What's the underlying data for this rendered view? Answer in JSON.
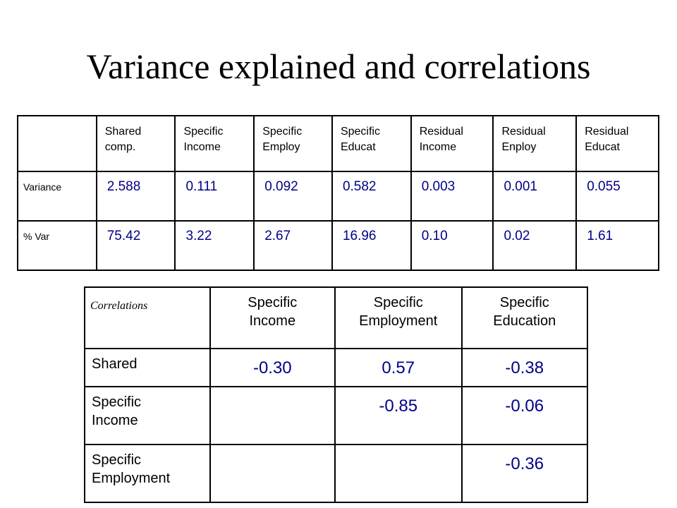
{
  "title": "Variance explained and correlations",
  "variance_table": {
    "headers": [
      [
        "Shared",
        "comp."
      ],
      [
        "Specific",
        "Income"
      ],
      [
        "Specific",
        "Employ"
      ],
      [
        "Specific",
        "Educat"
      ],
      [
        "Residual",
        "Income"
      ],
      [
        "Residual",
        "Enploy"
      ],
      [
        "Residual",
        "Educat"
      ]
    ],
    "rows": [
      {
        "label": "Variance",
        "values": [
          "2.588",
          "0.111",
          "0.092",
          "0.582",
          "0.003",
          "0.001",
          "0.055"
        ]
      },
      {
        "label": "% Var",
        "values": [
          "75.42",
          "3.22",
          "2.67",
          "16.96",
          "0.10",
          "0.02",
          "1.61"
        ]
      }
    ]
  },
  "correlation_table": {
    "corner_label": "Correlations",
    "headers": [
      [
        "Specific",
        "Income"
      ],
      [
        "Specific",
        "Employment"
      ],
      [
        "Specific",
        "Education"
      ]
    ],
    "rows": [
      {
        "label": [
          "Shared"
        ],
        "values": [
          "-0.30",
          "0.57",
          "-0.38"
        ]
      },
      {
        "label": [
          "Specific",
          "Income"
        ],
        "values": [
          "",
          "-0.85",
          "-0.06"
        ]
      },
      {
        "label": [
          "Specific",
          "Employment"
        ],
        "values": [
          "",
          "",
          "-0.36"
        ]
      }
    ]
  },
  "colors": {
    "value_text": "#000088",
    "border": "#000000"
  }
}
